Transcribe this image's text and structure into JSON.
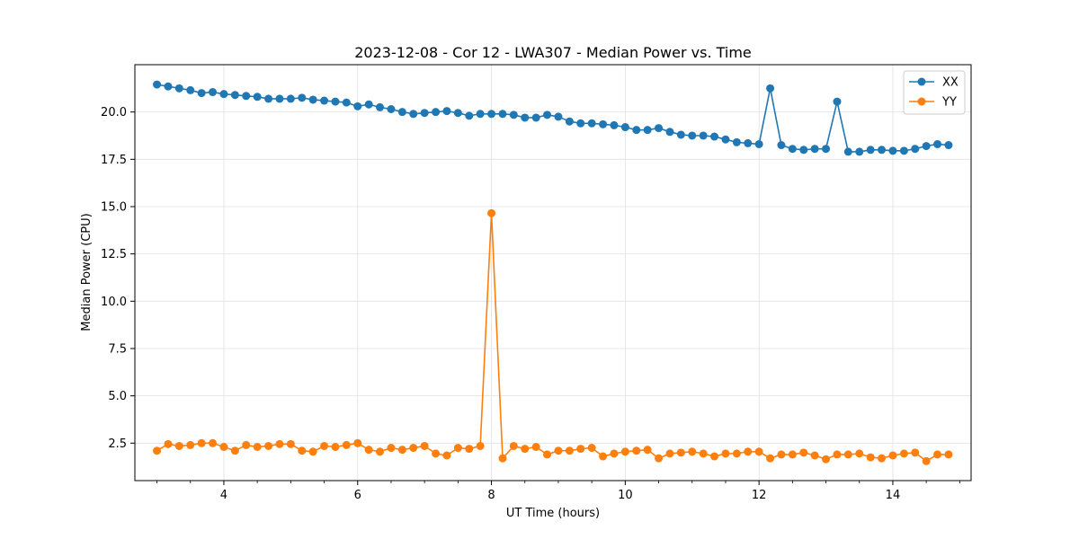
{
  "chart_data": {
    "type": "line",
    "title": "2023-12-08 - Cor 12 - LWA307 - Median Power vs. Time",
    "xlabel": "UT Time (hours)",
    "ylabel": "Median Power (CPU)",
    "xlim": [
      2.67,
      15.17
    ],
    "ylim": [
      0.52,
      22.5
    ],
    "xticks": [
      4,
      6,
      8,
      10,
      12,
      14
    ],
    "xtick_labels": [
      "4",
      "6",
      "8",
      "10",
      "12",
      "14"
    ],
    "yticks": [
      2.5,
      5.0,
      7.5,
      10.0,
      12.5,
      15.0,
      17.5,
      20.0
    ],
    "ytick_labels": [
      "2.5",
      "5.0",
      "7.5",
      "10.0",
      "12.5",
      "15.0",
      "17.5",
      "20.0"
    ],
    "grid": true,
    "legend_position": "top-right",
    "x": [
      3.0,
      3.167,
      3.333,
      3.5,
      3.667,
      3.833,
      4.0,
      4.167,
      4.333,
      4.5,
      4.667,
      4.833,
      5.0,
      5.167,
      5.333,
      5.5,
      5.667,
      5.833,
      6.0,
      6.167,
      6.333,
      6.5,
      6.667,
      6.833,
      7.0,
      7.167,
      7.333,
      7.5,
      7.667,
      7.833,
      8.0,
      8.167,
      8.333,
      8.5,
      8.667,
      8.833,
      9.0,
      9.167,
      9.333,
      9.5,
      9.667,
      9.833,
      10.0,
      10.167,
      10.333,
      10.5,
      10.667,
      10.833,
      11.0,
      11.167,
      11.333,
      11.5,
      11.667,
      11.833,
      12.0,
      12.167,
      12.333,
      12.5,
      12.667,
      12.833,
      13.0,
      13.167,
      13.333,
      13.5,
      13.667,
      13.833,
      14.0,
      14.167,
      14.333,
      14.5,
      14.667,
      14.833
    ],
    "series": [
      {
        "name": "XX",
        "color": "#1f77b4",
        "values": [
          21.45,
          21.35,
          21.25,
          21.15,
          21.0,
          21.05,
          20.95,
          20.9,
          20.85,
          20.8,
          20.7,
          20.7,
          20.7,
          20.75,
          20.65,
          20.6,
          20.55,
          20.5,
          20.3,
          20.4,
          20.25,
          20.15,
          20.0,
          19.9,
          19.95,
          20.0,
          20.05,
          19.95,
          19.8,
          19.9,
          19.9,
          19.9,
          19.85,
          19.7,
          19.7,
          19.85,
          19.75,
          19.5,
          19.4,
          19.4,
          19.35,
          19.3,
          19.2,
          19.05,
          19.05,
          19.15,
          18.95,
          18.8,
          18.75,
          18.75,
          18.7,
          18.55,
          18.4,
          18.35,
          18.3,
          21.25,
          18.25,
          18.05,
          18.0,
          18.05,
          18.05,
          20.55,
          17.9,
          17.9,
          18.0,
          18.0,
          17.95,
          17.95,
          18.05,
          18.2,
          18.3,
          18.25
        ]
      },
      {
        "name": "YY",
        "color": "#ff7f0e",
        "values": [
          2.1,
          2.45,
          2.35,
          2.4,
          2.5,
          2.5,
          2.3,
          2.1,
          2.4,
          2.3,
          2.35,
          2.45,
          2.45,
          2.1,
          2.05,
          2.35,
          2.3,
          2.4,
          2.5,
          2.15,
          2.05,
          2.25,
          2.15,
          2.25,
          2.35,
          1.95,
          1.85,
          2.25,
          2.2,
          2.35,
          14.65,
          1.7,
          2.35,
          2.2,
          2.3,
          1.9,
          2.1,
          2.1,
          2.2,
          2.25,
          1.8,
          1.95,
          2.05,
          2.1,
          2.15,
          1.7,
          1.95,
          2.0,
          2.05,
          1.95,
          1.8,
          1.95,
          1.95,
          2.05,
          2.05,
          1.7,
          1.9,
          1.9,
          2.0,
          1.85,
          1.65,
          1.9,
          1.9,
          1.95,
          1.75,
          1.7,
          1.85,
          1.95,
          2.0,
          1.55,
          1.9,
          1.9
        ]
      }
    ]
  }
}
